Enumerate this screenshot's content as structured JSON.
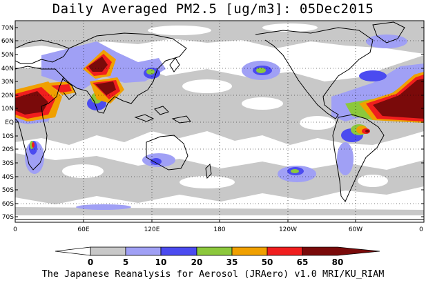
{
  "title": "Daily Averaged PM2.5 [ug/m3]: 05Dec2015",
  "footer": "The Japanese Reanalysis for Aerosol (JRAero) v1.0 MRI/KU_RIAM",
  "lat_ticks": [
    "70N",
    "60N",
    "50N",
    "40N",
    "30N",
    "20N",
    "10N",
    "EQ",
    "10S",
    "20S",
    "30S",
    "40S",
    "50S",
    "60S",
    "70S"
  ],
  "lon_ticks": [
    "0",
    "60E",
    "120E",
    "180",
    "120W",
    "60W",
    "0"
  ],
  "colorbar": {
    "ticks": [
      "0",
      "5",
      "10",
      "20",
      "35",
      "50",
      "65",
      "80"
    ],
    "colors": [
      "#ffffff",
      "#c8c8c8",
      "#a0a0f5",
      "#4b4bf0",
      "#8cc83c",
      "#f0a000",
      "#f01e1e",
      "#7a0a0a"
    ]
  }
}
